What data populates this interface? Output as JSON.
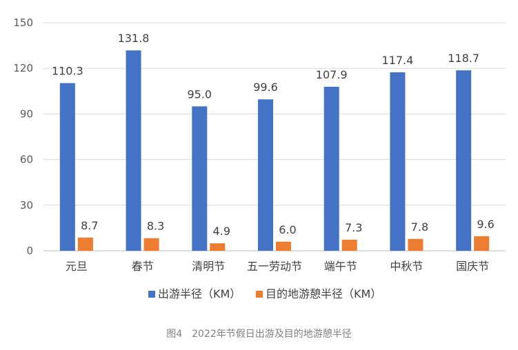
{
  "chart_data": {
    "type": "bar",
    "categories": [
      "元旦",
      "春节",
      "清明节",
      "五一劳动节",
      "端午节",
      "中秋节",
      "国庆节"
    ],
    "series": [
      {
        "name": "出游半径（KM）",
        "color": "#4472C4",
        "values": [
          110.3,
          131.8,
          95.0,
          99.6,
          107.9,
          117.4,
          118.7
        ],
        "labels": [
          "110.3",
          "131.8",
          "95.0",
          "99.6",
          "107.9",
          "117.4",
          "118.7"
        ]
      },
      {
        "name": "目的地游憩半径（KM）",
        "color": "#ED7D31",
        "values": [
          8.7,
          8.3,
          4.9,
          6.0,
          7.3,
          7.8,
          9.6
        ],
        "labels": [
          "8.7",
          "8.3",
          "4.9",
          "6.0",
          "7.3",
          "7.8",
          "9.6"
        ]
      }
    ],
    "ylim": [
      0,
      150
    ],
    "yticks": [
      0,
      30,
      60,
      90,
      120,
      150
    ],
    "grid": true,
    "legend_position": "bottom"
  },
  "caption": "图4　2022年节假日出游及目的地游憩半径"
}
